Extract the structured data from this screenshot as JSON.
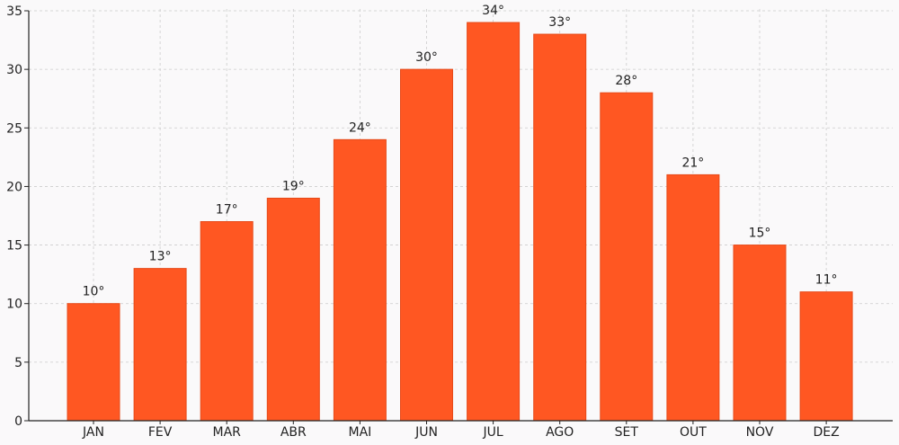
{
  "colors": {
    "background": "#faf9fa",
    "bar_fill": "#ff5722",
    "bar_stroke": "#e64a19",
    "grid": "#cccccc",
    "axis": "#222222"
  },
  "chart_data": {
    "type": "bar",
    "title": "",
    "xlabel": "",
    "ylabel": "",
    "categories": [
      "JAN",
      "FEV",
      "MAR",
      "ABR",
      "MAI",
      "JUN",
      "JUL",
      "AGO",
      "SET",
      "OUT",
      "NOV",
      "DEZ"
    ],
    "values": [
      10,
      13,
      17,
      19,
      24,
      30,
      34,
      33,
      28,
      21,
      15,
      11
    ],
    "data_labels": [
      "10°",
      "13°",
      "17°",
      "19°",
      "24°",
      "30°",
      "34°",
      "33°",
      "28°",
      "21°",
      "15°",
      "11°"
    ],
    "ylim": [
      0,
      35
    ],
    "yticks": [
      0,
      5,
      10,
      15,
      20,
      25,
      30,
      35
    ],
    "grid": true,
    "grid_style": "dashed",
    "legend": "none"
  }
}
